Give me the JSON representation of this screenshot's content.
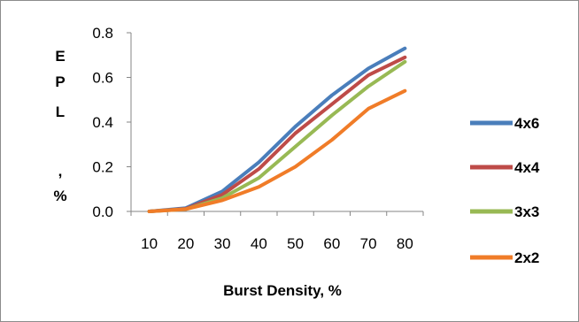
{
  "chart_data": {
    "type": "line",
    "xlabel": "Burst Density, %",
    "ylabel": "EPL, %",
    "ylabel_chars": [
      "E",
      "P",
      "L",
      ",",
      "%"
    ],
    "x": [
      10,
      20,
      30,
      40,
      50,
      60,
      70,
      80
    ],
    "xticks": [
      "10",
      "20",
      "30",
      "40",
      "50",
      "60",
      "70",
      "80"
    ],
    "yticks": [
      "0.0",
      "0.2",
      "0.4",
      "0.6",
      "0.8"
    ],
    "ylim": [
      0,
      0.8
    ],
    "grid": false,
    "legend": "right",
    "series": [
      {
        "name": "4x6",
        "color": "#4a7ebb",
        "values": [
          0.0,
          0.015,
          0.09,
          0.22,
          0.38,
          0.52,
          0.64,
          0.73
        ]
      },
      {
        "name": "4x4",
        "color": "#be4b48",
        "values": [
          0.0,
          0.012,
          0.075,
          0.19,
          0.35,
          0.48,
          0.61,
          0.69
        ]
      },
      {
        "name": "3x3",
        "color": "#98b954",
        "values": [
          0.0,
          0.01,
          0.06,
          0.15,
          0.29,
          0.43,
          0.56,
          0.67
        ]
      },
      {
        "name": "2x2",
        "color": "#f07c28",
        "values": [
          0.0,
          0.01,
          0.05,
          0.11,
          0.2,
          0.32,
          0.46,
          0.54
        ]
      }
    ]
  }
}
